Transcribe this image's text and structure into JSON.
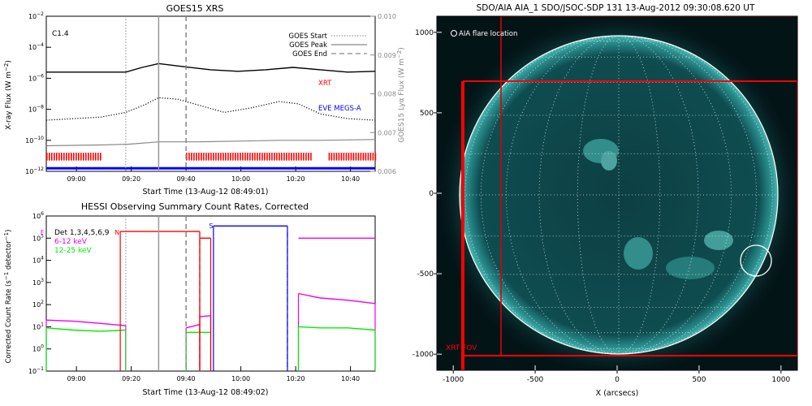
{
  "colors": {
    "black": "#000000",
    "gray": "#888888",
    "red": "#ff0000",
    "blue": "#0000ff",
    "magenta": "#ee00ee",
    "green": "#00ee00",
    "sun_bg": "#031417",
    "sun_disk": "#0e4a4d"
  },
  "chart_data": [
    {
      "id": "goes",
      "type": "line",
      "title": "GOES15 XRS",
      "xlabel": "Start Time (13-Aug-12 08:49:01)",
      "ylabel": "X-ray Flux (W m^-2)",
      "y2label": "GOES15 Lyα Flux (W m^-2)",
      "xlim": [
        0,
        120
      ],
      "x_ticks": [
        {
          "x": 11,
          "label": "09:00"
        },
        {
          "x": 31,
          "label": "09:20"
        },
        {
          "x": 51,
          "label": "09:40"
        },
        {
          "x": 71,
          "label": "10:00"
        },
        {
          "x": 91,
          "label": "10:20"
        },
        {
          "x": 111,
          "label": "10:40"
        }
      ],
      "ylim_log": [
        -12,
        -2
      ],
      "y_ticks": [
        "10^-12",
        "10^-10",
        "10^-8",
        "10^-6",
        "10^-4",
        "10^-2"
      ],
      "y2lim": [
        0.006,
        0.01
      ],
      "y2_ticks": [
        "0.006",
        "0.007",
        "0.008",
        "0.009",
        "0.010"
      ],
      "annotation": "C1.4",
      "legend_position": "top-right",
      "legend": [
        {
          "label": "GOES Start",
          "style": "dotted"
        },
        {
          "label": "GOES Peak",
          "style": "solid"
        },
        {
          "label": "GOES End",
          "style": "dashed"
        }
      ],
      "markers": {
        "start": 29,
        "peak": 41,
        "end": 51
      },
      "series": [
        {
          "name": "XRT",
          "color": "#ff0000",
          "points": [
            [
              0,
              -5.6
            ],
            [
              10,
              -5.6
            ],
            [
              20,
              -5.6
            ],
            [
              29,
              -5.6
            ],
            [
              35,
              -5.3
            ],
            [
              41,
              -5.05
            ],
            [
              50,
              -5.25
            ],
            [
              60,
              -5.45
            ],
            [
              70,
              -5.55
            ],
            [
              80,
              -5.45
            ],
            [
              90,
              -5.3
            ],
            [
              100,
              -5.45
            ],
            [
              110,
              -5.6
            ],
            [
              120,
              -5.55
            ]
          ]
        },
        {
          "name": "EVE MEGS-A",
          "color": "#0000ff",
          "points": [
            [
              0,
              -11.8
            ],
            [
              120,
              -11.8
            ]
          ]
        },
        {
          "name": "",
          "color": "#000000",
          "style": "dotted",
          "points": [
            [
              0,
              -8.7
            ],
            [
              10,
              -8.6
            ],
            [
              20,
              -8.5
            ],
            [
              29,
              -8.2
            ],
            [
              36,
              -7.7
            ],
            [
              41,
              -7.25
            ],
            [
              48,
              -7.35
            ],
            [
              55,
              -7.7
            ],
            [
              65,
              -8.2
            ],
            [
              75,
              -7.9
            ],
            [
              85,
              -7.5
            ],
            [
              92,
              -7.65
            ],
            [
              100,
              -8.3
            ],
            [
              110,
              -8.6
            ],
            [
              120,
              -8.7
            ]
          ]
        },
        {
          "name": "",
          "color": "#888888",
          "style": "solid",
          "points": [
            [
              0,
              -10.35
            ],
            [
              20,
              -10.3
            ],
            [
              30,
              -10.25
            ],
            [
              41,
              -10.1
            ],
            [
              55,
              -10.1
            ],
            [
              70,
              -10.05
            ],
            [
              85,
              -10.0
            ],
            [
              100,
              -10.0
            ],
            [
              120,
              -9.95
            ]
          ]
        }
      ],
      "red_bars": [
        [
          0,
          20
        ],
        [
          51,
          97
        ],
        [
          103,
          120
        ]
      ]
    },
    {
      "id": "hessi",
      "type": "line",
      "title": "HESSI Observing Summary Count Rates, Corrected",
      "xlabel": "Start Time (13-Aug-12 08:49:02)",
      "ylabel": "Corrected Count Rate (s^-1 detector^-1)",
      "xlim": [
        0,
        120
      ],
      "x_ticks": [
        {
          "x": 11,
          "label": "09:00"
        },
        {
          "x": 31,
          "label": "09:20"
        },
        {
          "x": 51,
          "label": "09:40"
        },
        {
          "x": 71,
          "label": "10:00"
        },
        {
          "x": 91,
          "label": "10:20"
        },
        {
          "x": 111,
          "label": "10:40"
        }
      ],
      "ylim_log": [
        -1,
        6
      ],
      "y_ticks": [
        "10^-1",
        "10^0",
        "10^1",
        "10^2",
        "10^3",
        "10^4",
        "10^5",
        "10^6"
      ],
      "legend_position": "top-left",
      "legend": [
        {
          "label": "Det 1,3,4,5,6,9",
          "color": "#000000"
        },
        {
          "label": "6-12 keV",
          "color": "#ee00ee"
        },
        {
          "label": "12-25 keV",
          "color": "#00ee00"
        }
      ],
      "flags": [
        {
          "label": "F",
          "x": 0,
          "color": "#ee00ee"
        },
        {
          "label": "N",
          "x": 27,
          "color": "#ff0000"
        },
        {
          "label": "S",
          "x": 61,
          "color": "#0000ff"
        }
      ],
      "markers": {
        "start": 29,
        "peak": 41,
        "end": 51
      },
      "series": [
        {
          "name": "6-12 keV",
          "color": "#ee00ee",
          "segments": [
            [
              [
                0,
                1.3
              ],
              [
                10,
                1.25
              ],
              [
                20,
                1.15
              ],
              [
                29,
                1.05
              ]
            ],
            [
              [
                51,
                0.95
              ],
              [
                56,
                1.1
              ]
            ],
            [
              [
                56,
                1.45
              ],
              [
                60,
                1.5
              ]
            ],
            [
              [
                92,
                2.5
              ],
              [
                100,
                2.3
              ],
              [
                110,
                2.2
              ],
              [
                120,
                2.05
              ]
            ]
          ]
        },
        {
          "name": "12-25 keV",
          "color": "#00ee00",
          "segments": [
            [
              [
                0,
                0.95
              ],
              [
                10,
                0.85
              ],
              [
                20,
                0.8
              ],
              [
                29,
                0.85
              ]
            ],
            [
              [
                51,
                0.75
              ],
              [
                60,
                0.75
              ]
            ],
            [
              [
                92,
                1.0
              ],
              [
                100,
                0.95
              ],
              [
                110,
                0.95
              ],
              [
                120,
                0.85
              ]
            ]
          ]
        },
        {
          "name": "",
          "color": "#ff0000",
          "segments": [
            [
              [
                27,
                5.3
              ],
              [
                56,
                5.3
              ]
            ],
            [
              [
                56,
                5.0
              ],
              [
                60,
                5.0
              ]
            ]
          ]
        },
        {
          "name": "",
          "color": "#0000ff",
          "segments": [
            [
              [
                61,
                5.55
              ],
              [
                88,
                5.55
              ]
            ]
          ]
        },
        {
          "name": "",
          "color": "#ee00ee",
          "segments": [
            [
              [
                92,
                5.0
              ],
              [
                120,
                5.0
              ]
            ]
          ]
        }
      ],
      "attenuator_dashes": [
        {
          "x": 56,
          "color": "#ff0000"
        },
        {
          "x": 88,
          "color": "#0000ff"
        }
      ]
    },
    {
      "id": "aia",
      "type": "image",
      "title": "SDO/AIA AIA_1 SDO/JSOC-SDP 131 13-Aug-2012 09:30:08.620 UT",
      "xlabel": "X (arcsecs)",
      "xlim": [
        -1100,
        1100
      ],
      "ylim": [
        -1100,
        1100
      ],
      "x_ticks": [
        -1000,
        -500,
        0,
        500,
        1000
      ],
      "y_ticks": [
        -1000,
        -500,
        0,
        500,
        1000
      ],
      "solar_radius_arcsec": 950,
      "flare_location": {
        "label": "AIA flare location",
        "x": 850,
        "y": -400,
        "r": 90
      },
      "xrt_fov": {
        "label": "XRT FOV",
        "x": [
          -950,
          1100
        ],
        "y": [
          -980,
          700
        ]
      },
      "box_outline": {
        "x": [
          -720,
          1100
        ],
        "y": [
          -980,
          1100
        ]
      }
    }
  ]
}
